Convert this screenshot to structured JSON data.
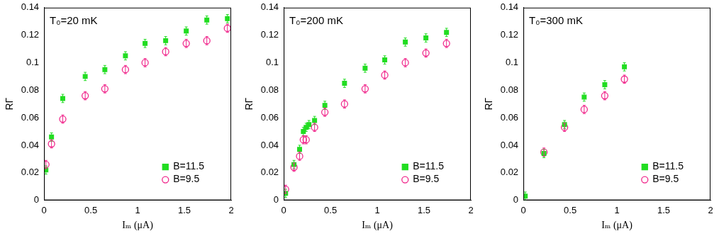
{
  "chart_data": [
    {
      "type": "scatter",
      "annotation": "T₀=20 mK",
      "x_label": "Iₘ (μA)",
      "y_label": "RΓ",
      "xlim": [
        0,
        2
      ],
      "xticks": [
        0,
        0.5,
        1,
        1.5,
        2
      ],
      "ylim": [
        0,
        0.14
      ],
      "yticks": [
        0,
        0.02,
        0.04,
        0.06,
        0.08,
        0.1,
        0.12,
        0.14
      ],
      "grid": false,
      "legend": "lower right",
      "series": [
        {
          "name": "B=11.5",
          "color": "#22dd22",
          "marker": "square",
          "x": [
            0.02,
            0.08,
            0.2,
            0.44,
            0.65,
            0.87,
            1.08,
            1.3,
            1.52,
            1.74,
            1.96
          ],
          "values": [
            0.022,
            0.046,
            0.074,
            0.09,
            0.095,
            0.105,
            0.114,
            0.116,
            0.123,
            0.131,
            0.132
          ],
          "errors": [
            0.003,
            0.003,
            0.003,
            0.003,
            0.003,
            0.003,
            0.003,
            0.003,
            0.003,
            0.003,
            0.003
          ]
        },
        {
          "name": "B=9.5",
          "color": "#f0288c",
          "marker": "open_circle",
          "x": [
            0.02,
            0.08,
            0.2,
            0.44,
            0.65,
            0.87,
            1.08,
            1.3,
            1.52,
            1.74,
            1.96
          ],
          "values": [
            0.026,
            0.041,
            0.059,
            0.076,
            0.081,
            0.095,
            0.1,
            0.108,
            0.114,
            0.116,
            0.125
          ],
          "errors": [
            0.003,
            0.003,
            0.003,
            0.003,
            0.003,
            0.003,
            0.003,
            0.003,
            0.003,
            0.003,
            0.003
          ]
        }
      ]
    },
    {
      "type": "scatter",
      "annotation": "T₀=200 mK",
      "x_label": "Iₘ (μA)",
      "y_label": "RΓ",
      "xlim": [
        0,
        2
      ],
      "xticks": [
        0,
        0.5,
        1,
        1.5,
        2
      ],
      "ylim": [
        0,
        0.14
      ],
      "yticks": [
        0,
        0.02,
        0.04,
        0.06,
        0.08,
        0.1,
        0.12,
        0.14
      ],
      "grid": false,
      "legend": "lower right",
      "series": [
        {
          "name": "B=11.5",
          "color": "#22dd22",
          "marker": "square",
          "x": [
            0.02,
            0.11,
            0.17,
            0.21,
            0.24,
            0.27,
            0.33,
            0.44,
            0.65,
            0.87,
            1.08,
            1.3,
            1.52,
            1.74
          ],
          "values": [
            0.005,
            0.026,
            0.037,
            0.05,
            0.053,
            0.055,
            0.058,
            0.069,
            0.085,
            0.096,
            0.102,
            0.115,
            0.118,
            0.122
          ],
          "errors": [
            0.003,
            0.003,
            0.003,
            0.003,
            0.003,
            0.003,
            0.003,
            0.003,
            0.003,
            0.003,
            0.003,
            0.003,
            0.003,
            0.003
          ]
        },
        {
          "name": "B=9.5",
          "color": "#f0288c",
          "marker": "open_circle",
          "x": [
            0.02,
            0.11,
            0.17,
            0.21,
            0.24,
            0.33,
            0.44,
            0.65,
            0.87,
            1.08,
            1.3,
            1.52,
            1.74
          ],
          "values": [
            0.008,
            0.024,
            0.032,
            0.044,
            0.044,
            0.053,
            0.064,
            0.07,
            0.081,
            0.091,
            0.1,
            0.107,
            0.114
          ],
          "errors": [
            0.003,
            0.003,
            0.003,
            0.003,
            0.003,
            0.003,
            0.003,
            0.003,
            0.003,
            0.003,
            0.003,
            0.003,
            0.003
          ]
        }
      ]
    },
    {
      "type": "scatter",
      "annotation": "T₀=300 mK",
      "x_label": "Iₘ (μA)",
      "y_label": "RΓ",
      "xlim": [
        0,
        2
      ],
      "xticks": [
        0,
        0.5,
        1,
        1.5,
        2
      ],
      "ylim": [
        0,
        0.14
      ],
      "yticks": [
        0,
        0.02,
        0.04,
        0.06,
        0.08,
        0.1,
        0.12,
        0.14
      ],
      "grid": false,
      "legend": "lower right",
      "series": [
        {
          "name": "B=11.5",
          "color": "#22dd22",
          "marker": "square",
          "x": [
            0.02,
            0.22,
            0.44,
            0.65,
            0.87,
            1.08
          ],
          "values": [
            0.003,
            0.034,
            0.055,
            0.075,
            0.084,
            0.097
          ],
          "errors": [
            0.003,
            0.003,
            0.003,
            0.003,
            0.003,
            0.003
          ]
        },
        {
          "name": "B=9.5",
          "color": "#f0288c",
          "marker": "open_circle",
          "x": [
            0.22,
            0.44,
            0.65,
            0.87,
            1.08
          ],
          "values": [
            0.035,
            0.053,
            0.066,
            0.076,
            0.088
          ],
          "errors": [
            0.003,
            0.003,
            0.003,
            0.003,
            0.003
          ]
        }
      ]
    }
  ]
}
